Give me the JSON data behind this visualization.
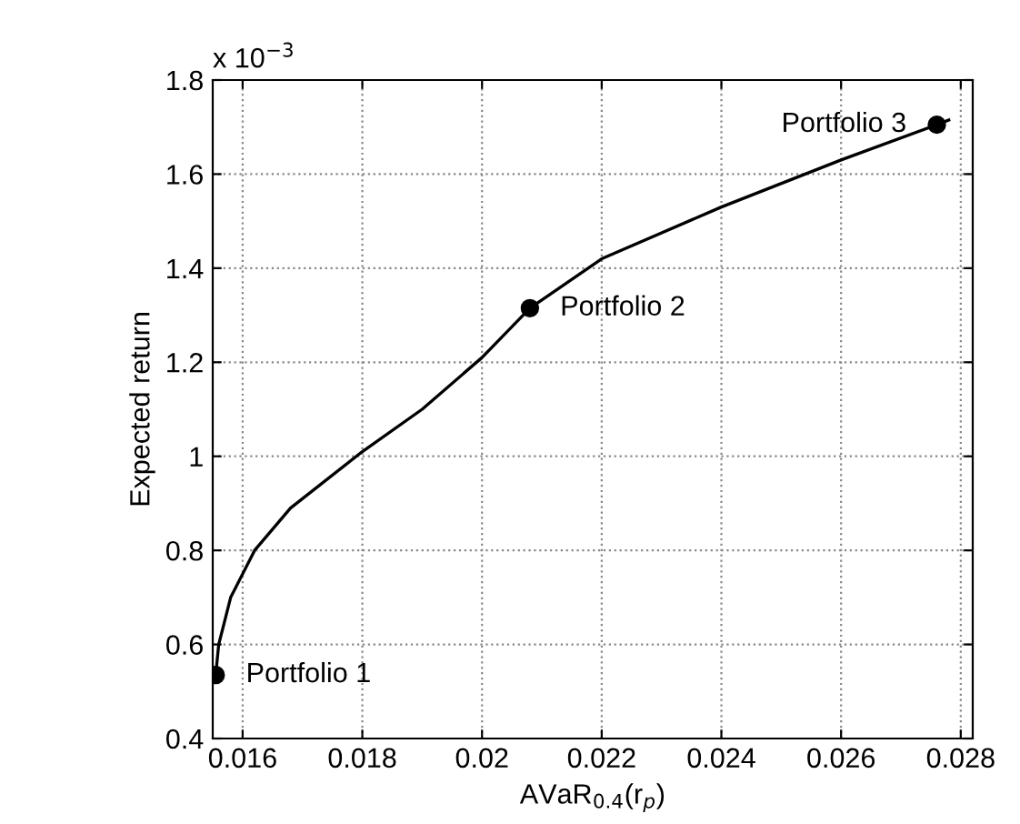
{
  "chart_data": {
    "type": "line",
    "xlabel": "AVaR$_{0.4}$(r$_{p}$)",
    "ylabel": "Expected return",
    "xlim": [
      0.0155,
      0.0282
    ],
    "xticks": [
      0.016,
      0.018,
      0.02,
      0.022,
      0.024,
      0.026,
      0.028
    ],
    "ylim": [
      0.4,
      1.8
    ],
    "yticks": [
      0.4,
      0.6,
      0.8,
      1,
      1.2,
      1.4,
      1.6,
      1.8
    ],
    "grid": true,
    "series": [
      {
        "color": "#000000",
        "x": [
          0.01555,
          0.0156,
          0.0158,
          0.0162,
          0.0168,
          0.018,
          0.019,
          0.02,
          0.0208,
          0.022,
          0.024,
          0.026,
          0.0276,
          0.0278
        ],
        "values": [
          0.535,
          0.6,
          0.7,
          0.8,
          0.89,
          1.01,
          1.1,
          1.21,
          1.315,
          1.42,
          1.53,
          1.63,
          1.705,
          1.715
        ]
      },
      {
        "type": "scatter",
        "color": "#000000",
        "marker": "circle",
        "x": [
          0.01555,
          0.0208,
          0.0276
        ],
        "values": [
          0.535,
          1.315,
          1.705
        ]
      }
    ],
    "annotations": [
      "x 10$^{−3}$",
      {
        "text": "Portfolio 1",
        "x": 0.01555,
        "y": 0.535
      },
      {
        "text": "Portfolio 2",
        "x": 0.0208,
        "y": 1.315
      },
      {
        "text": "Portfolio 3",
        "x": 0.0276,
        "y": 1.705
      }
    ]
  }
}
